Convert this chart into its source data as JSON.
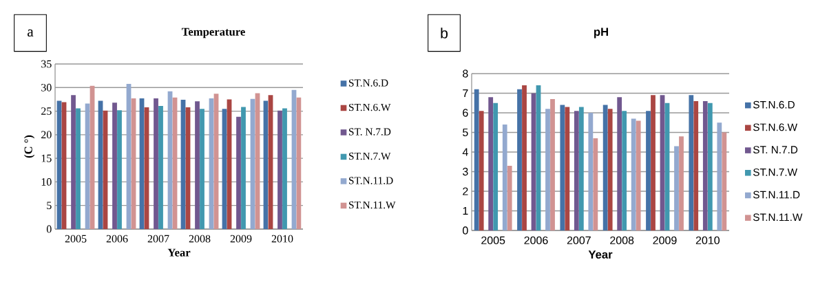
{
  "chart_data": [
    {
      "type": "bar",
      "title": "Temperature",
      "xlabel": "Year",
      "ylabel": "(C °)",
      "annotations": [
        "a"
      ],
      "categories": [
        "2005",
        "2006",
        "2007",
        "2008",
        "2009",
        "2010"
      ],
      "series": [
        {
          "name": "ST.N.6.D",
          "color": "#4572a7",
          "values": [
            27.2,
            27.2,
            27.7,
            27.4,
            25.5,
            27.2
          ]
        },
        {
          "name": "ST.N.6.W",
          "color": "#aa4643",
          "values": [
            26.9,
            25.1,
            25.8,
            25.8,
            27.5,
            28.4
          ]
        },
        {
          "name": "ST. N.7.D",
          "color": "#71588f",
          "values": [
            28.4,
            26.8,
            27.7,
            27.1,
            23.8,
            25.1
          ]
        },
        {
          "name": "ST.N.7.W",
          "color": "#4198af",
          "values": [
            25.6,
            25.2,
            26.1,
            25.5,
            25.9,
            25.6
          ]
        },
        {
          "name": "ST.N.11.D",
          "color": "#93a9cf",
          "values": [
            26.6,
            30.8,
            29.2,
            27.7,
            27.6,
            29.5
          ]
        },
        {
          "name": "ST.N.11.W",
          "color": "#d19392",
          "values": [
            30.4,
            27.7,
            27.9,
            28.7,
            28.8,
            27.9
          ]
        }
      ],
      "ylim": [
        0,
        35
      ],
      "yticks": [
        0,
        5,
        10,
        15,
        20,
        25,
        30,
        35
      ],
      "grid": "y",
      "legend": "right"
    },
    {
      "type": "bar",
      "title": "pH",
      "xlabel": "Year",
      "annotations": [
        "b"
      ],
      "categories": [
        "2005",
        "2006",
        "2007",
        "2008",
        "2009",
        "2010"
      ],
      "series": [
        {
          "name": "ST.N.6.D",
          "color": "#4572a7",
          "values": [
            7.2,
            7.2,
            6.4,
            6.4,
            6.1,
            6.9
          ]
        },
        {
          "name": "ST.N.6.W",
          "color": "#aa4643",
          "values": [
            6.1,
            7.4,
            6.3,
            6.2,
            6.9,
            6.6
          ]
        },
        {
          "name": "ST. N.7.D",
          "color": "#71588f",
          "values": [
            6.8,
            7.0,
            6.1,
            6.8,
            6.9,
            6.6
          ]
        },
        {
          "name": "ST.N.7.W",
          "color": "#4198af",
          "values": [
            6.5,
            7.4,
            6.3,
            6.1,
            6.5,
            6.5
          ]
        },
        {
          "name": "ST.N.11.D",
          "color": "#93a9cf",
          "values": [
            5.4,
            6.2,
            6.0,
            5.7,
            4.3,
            5.5
          ]
        },
        {
          "name": "ST.N.11.W",
          "color": "#d19392",
          "values": [
            3.3,
            6.7,
            4.7,
            5.6,
            4.8,
            5.0
          ]
        }
      ],
      "ylim": [
        0,
        8
      ],
      "yticks": [
        0,
        1,
        2,
        3,
        4,
        5,
        6,
        7,
        8
      ],
      "grid": "y",
      "legend": "right"
    }
  ]
}
